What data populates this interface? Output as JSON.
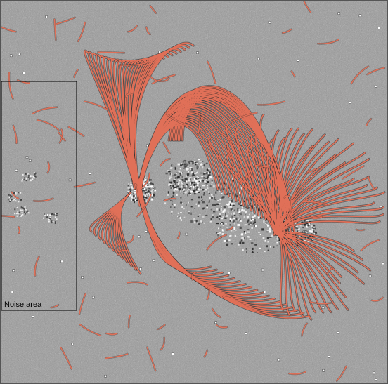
{
  "image": {
    "background_color": "#9a9a9a",
    "loop_color": "#e07058",
    "annotation_color": "#000000"
  },
  "annotations": {
    "noise_area_label": "Noise area"
  }
}
